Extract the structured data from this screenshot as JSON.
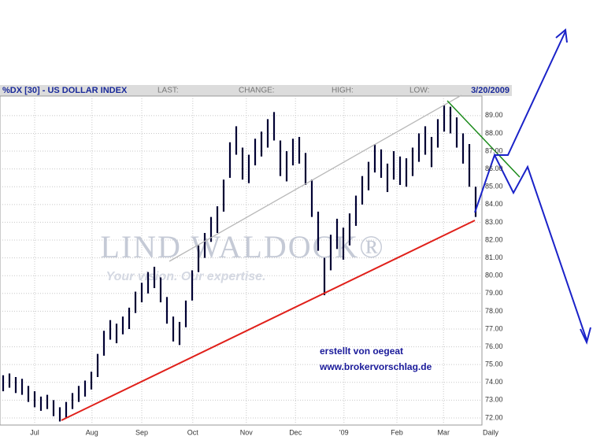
{
  "chart_data": {
    "type": "range",
    "title": "%DX [30] - US DOLLAR INDEX",
    "header_fields": [
      "LAST:",
      "CHANGE:",
      "HIGH:",
      "LOW:"
    ],
    "date": "3/20/2009",
    "x_axis_label": "Daily",
    "watermark": "LIND WALDOCK®",
    "watermark_slogan": "Your vision. Our expertise.",
    "annotations": [
      "erstellt von oegeat",
      "www.brokervorschlag.de"
    ],
    "color": "#000033",
    "grid": true,
    "xlim": [
      -0.5,
      76
    ],
    "xticks": [
      {
        "value": 5,
        "label": "Jul"
      },
      {
        "value": 14.1,
        "label": "Aug"
      },
      {
        "value": 22,
        "label": "Sep"
      },
      {
        "value": 30.1,
        "label": "Oct"
      },
      {
        "value": 38.6,
        "label": "Nov"
      },
      {
        "value": 46.4,
        "label": "Dec"
      },
      {
        "value": 54.1,
        "label": "'09"
      },
      {
        "value": 62.5,
        "label": "Feb"
      },
      {
        "value": 69.9,
        "label": "Mar"
      }
    ],
    "ylim": [
      71.6,
      90.1
    ],
    "yticks": [
      {
        "value": 72,
        "label": "72.00"
      },
      {
        "value": 73,
        "label": "73.00"
      },
      {
        "value": 74,
        "label": "74.00"
      },
      {
        "value": 75,
        "label": "75.00"
      },
      {
        "value": 76,
        "label": "76.00"
      },
      {
        "value": 77,
        "label": "77.00"
      },
      {
        "value": 78,
        "label": "78.00"
      },
      {
        "value": 79,
        "label": "79.00"
      },
      {
        "value": 80,
        "label": "80.00"
      },
      {
        "value": 81,
        "label": "81.00"
      },
      {
        "value": 82,
        "label": "82.00"
      },
      {
        "value": 83,
        "label": "83.00"
      },
      {
        "value": 84,
        "label": "84.00"
      },
      {
        "value": 85,
        "label": "85.00"
      },
      {
        "value": 86,
        "label": "86.00"
      },
      {
        "value": 87,
        "label": "87.00"
      },
      {
        "value": 88,
        "label": "88.00"
      },
      {
        "value": 89,
        "label": "89.00"
      }
    ],
    "high": [
      74.4,
      74.5,
      74.3,
      74.2,
      73.8,
      73.5,
      73.2,
      73.3,
      73.0,
      72.6,
      72.9,
      73.4,
      73.8,
      74.1,
      74.6,
      75.6,
      76.9,
      77.5,
      77.3,
      77.7,
      78.2,
      79.1,
      79.6,
      80.2,
      80.5,
      79.9,
      78.8,
      77.7,
      77.4,
      78.6,
      80.3,
      81.7,
      82.4,
      83.3,
      83.9,
      85.4,
      87.5,
      88.4,
      87.2,
      86.8,
      87.7,
      88.1,
      88.8,
      89.2,
      87.6,
      87.0,
      87.7,
      87.8,
      86.9,
      85.4,
      83.6,
      81.0,
      82.3,
      83.2,
      82.7,
      83.5,
      84.5,
      85.6,
      86.4,
      87.4,
      87.1,
      86.3,
      87.0,
      86.7,
      86.6,
      87.2,
      88.0,
      88.4,
      87.8,
      88.8,
      89.6,
      89.5,
      88.9,
      88.0,
      87.4,
      85.0
    ],
    "low": [
      73.5,
      73.7,
      73.4,
      73.3,
      72.9,
      72.6,
      72.4,
      72.5,
      72.1,
      71.8,
      72.0,
      72.5,
      72.9,
      73.2,
      73.6,
      74.3,
      75.5,
      76.4,
      76.2,
      76.7,
      77.0,
      77.9,
      78.5,
      79.0,
      79.3,
      78.5,
      77.3,
      76.3,
      76.1,
      77.1,
      78.6,
      80.2,
      81.0,
      81.9,
      82.4,
      83.6,
      85.5,
      86.8,
      85.4,
      85.2,
      86.2,
      86.7,
      87.2,
      87.6,
      85.6,
      85.3,
      86.2,
      86.3,
      85.1,
      83.3,
      81.4,
      78.9,
      80.3,
      81.5,
      80.9,
      81.7,
      82.8,
      84.0,
      84.8,
      85.8,
      85.5,
      84.7,
      85.4,
      85.1,
      85.0,
      85.6,
      86.4,
      86.8,
      86.1,
      87.2,
      88.1,
      88.0,
      87.2,
      86.3,
      85.0,
      83.3
    ]
  }
}
